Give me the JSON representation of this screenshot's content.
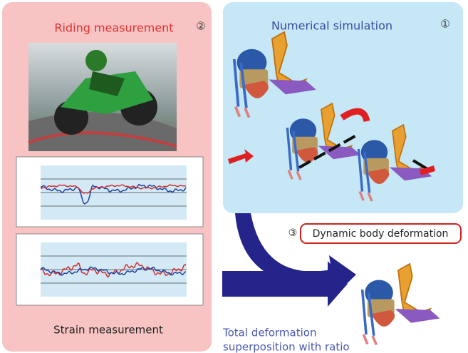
{
  "left_panel": {
    "title": "Riding measurement",
    "number": "②",
    "caption": "Strain measurement"
  },
  "right_panel": {
    "title": "Numerical simulation",
    "number": "①"
  },
  "step3": {
    "number": "③",
    "label": "Dynamic body deformation"
  },
  "result": {
    "line1": "Total deformation",
    "line2": "superposition with ratio"
  }
}
